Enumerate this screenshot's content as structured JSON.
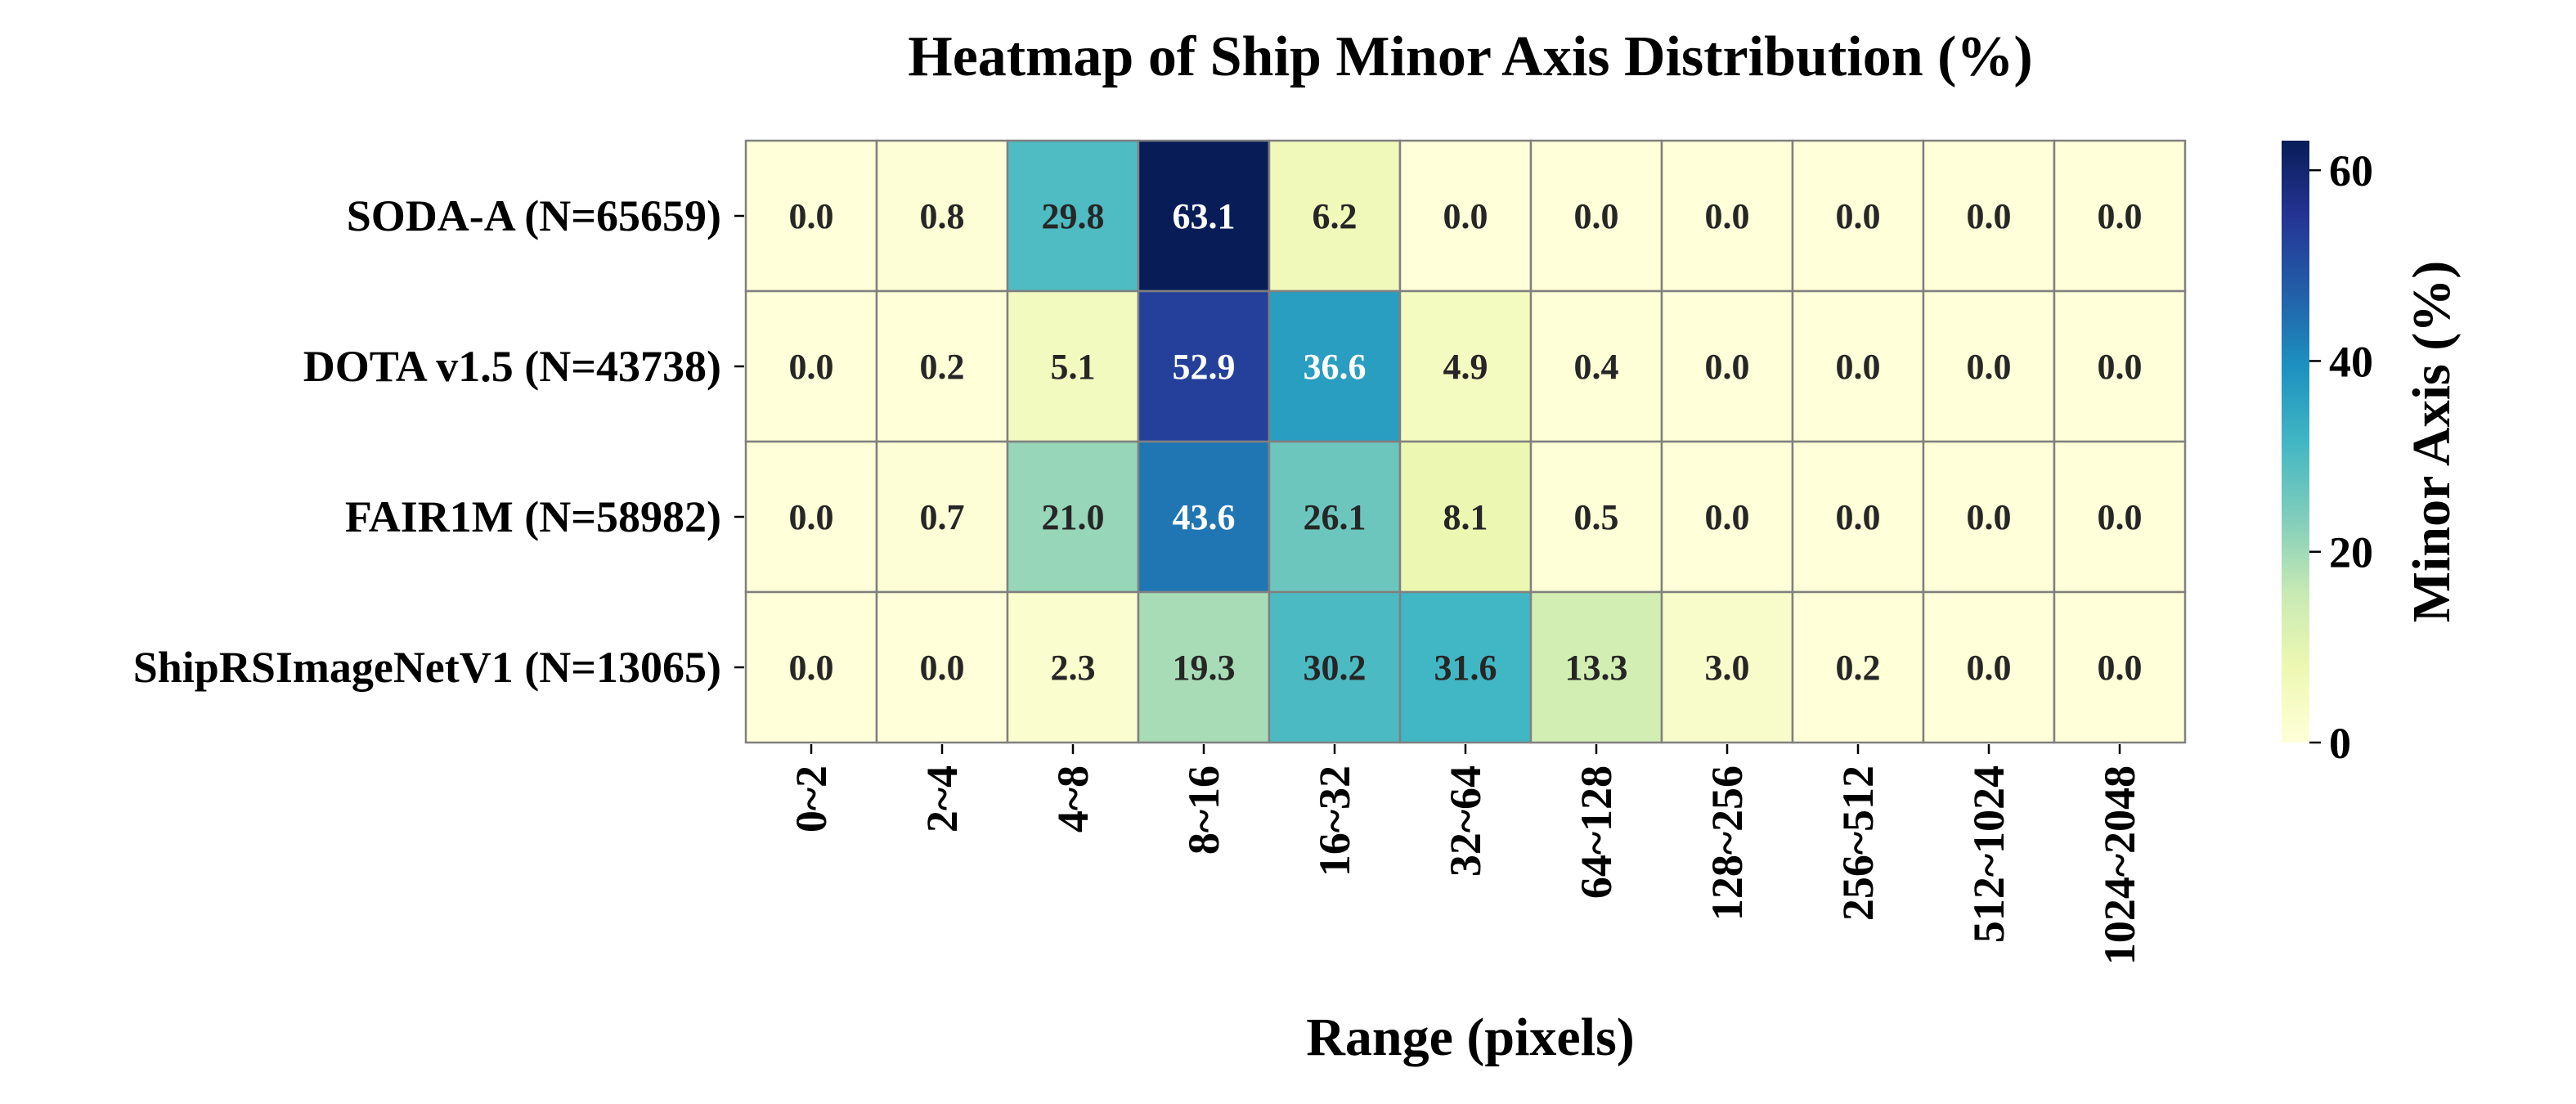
{
  "chart_data": {
    "type": "heatmap",
    "title": "Heatmap of Ship Minor Axis Distribution (%)",
    "xlabel": "Range (pixels)",
    "ylabel": "",
    "x": [
      "0~2",
      "2~4",
      "4~8",
      "8~16",
      "16~32",
      "32~64",
      "64~128",
      "128~256",
      "256~512",
      "512~1024",
      "1024~2048"
    ],
    "y": [
      "SODA-A (N=65659)",
      "DOTA v1.5 (N=43738)",
      "FAIR1M (N=58982)",
      "ShipRSImageNetV1 (N=13065)"
    ],
    "values": [
      [
        0.0,
        0.8,
        29.8,
        63.1,
        6.2,
        0.0,
        0.0,
        0.0,
        0.0,
        0.0,
        0.0
      ],
      [
        0.0,
        0.2,
        5.1,
        52.9,
        36.6,
        4.9,
        0.4,
        0.0,
        0.0,
        0.0,
        0.0
      ],
      [
        0.0,
        0.7,
        21.0,
        43.6,
        26.1,
        8.1,
        0.5,
        0.0,
        0.0,
        0.0,
        0.0
      ],
      [
        0.0,
        0.0,
        2.3,
        19.3,
        30.2,
        31.6,
        13.3,
        3.0,
        0.2,
        0.0,
        0.0
      ]
    ],
    "value_labels": [
      [
        "0.0",
        "0.8",
        "29.8",
        "63.1",
        "6.2",
        "0.0",
        "0.0",
        "0.0",
        "0.0",
        "0.0",
        "0.0"
      ],
      [
        "0.0",
        "0.2",
        "5.1",
        "52.9",
        "36.6",
        "4.9",
        "0.4",
        "0.0",
        "0.0",
        "0.0",
        "0.0"
      ],
      [
        "0.0",
        "0.7",
        "21.0",
        "43.6",
        "26.1",
        "8.1",
        "0.5",
        "0.0",
        "0.0",
        "0.0",
        "0.0"
      ],
      [
        "0.0",
        "0.0",
        "2.3",
        "19.3",
        "30.2",
        "31.6",
        "13.3",
        "3.0",
        "0.2",
        "0.0",
        "0.0"
      ]
    ],
    "colorbar": {
      "label": "Minor Axis (%)",
      "range": [
        0,
        63.1
      ],
      "ticks": [
        0,
        20,
        40,
        60
      ],
      "colormap": "YlGnBu",
      "colormap_stops": [
        "#ffffd9",
        "#edf8b1",
        "#c7e9b4",
        "#7fcdbb",
        "#41b6c4",
        "#1d91c0",
        "#225ea8",
        "#253494",
        "#081d58"
      ]
    },
    "grid": false,
    "cell_border_color": "#808080"
  }
}
